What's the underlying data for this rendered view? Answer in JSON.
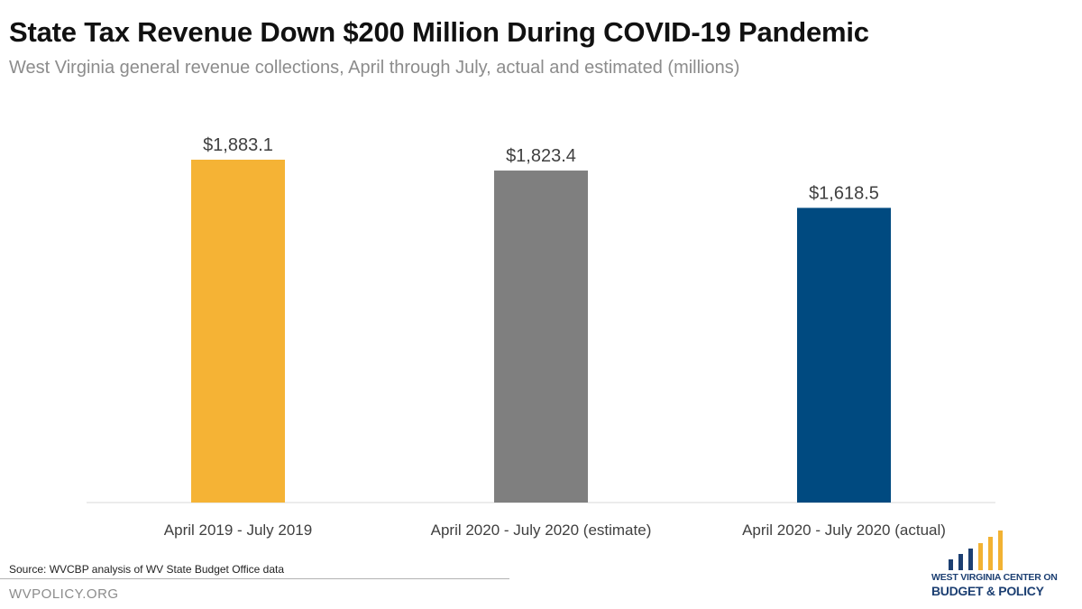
{
  "chart_data": {
    "type": "bar",
    "title": "State Tax Revenue Down $200 Million During COVID-19 Pandemic",
    "subtitle": "West Virginia general revenue collections, April through July, actual and estimated (millions)",
    "categories": [
      "April 2019 - July 2019",
      "April 2020 - July 2020 (estimate)",
      "April 2020 - July 2020 (actual)"
    ],
    "values": [
      1883.1,
      1823.4,
      1618.5
    ],
    "data_labels": [
      "$1,883.1",
      "$1,823.4",
      "$1,618.5"
    ],
    "bar_colors": [
      "#f5b335",
      "#7f7f7f",
      "#004a80"
    ],
    "xlabel": "",
    "ylabel": "",
    "ylim": [
      0,
      2000
    ],
    "grid": false,
    "legend": "none"
  },
  "footer": {
    "source": "Source:  WVCBP analysis of WV State Budget Office data",
    "site": "WVPOLICY.ORG"
  },
  "logo": {
    "line1": "WEST VIRGINIA CENTER ON",
    "line2": "BUDGET & POLICY",
    "bar_colors": [
      "#1c3f72",
      "#f2b233"
    ]
  }
}
